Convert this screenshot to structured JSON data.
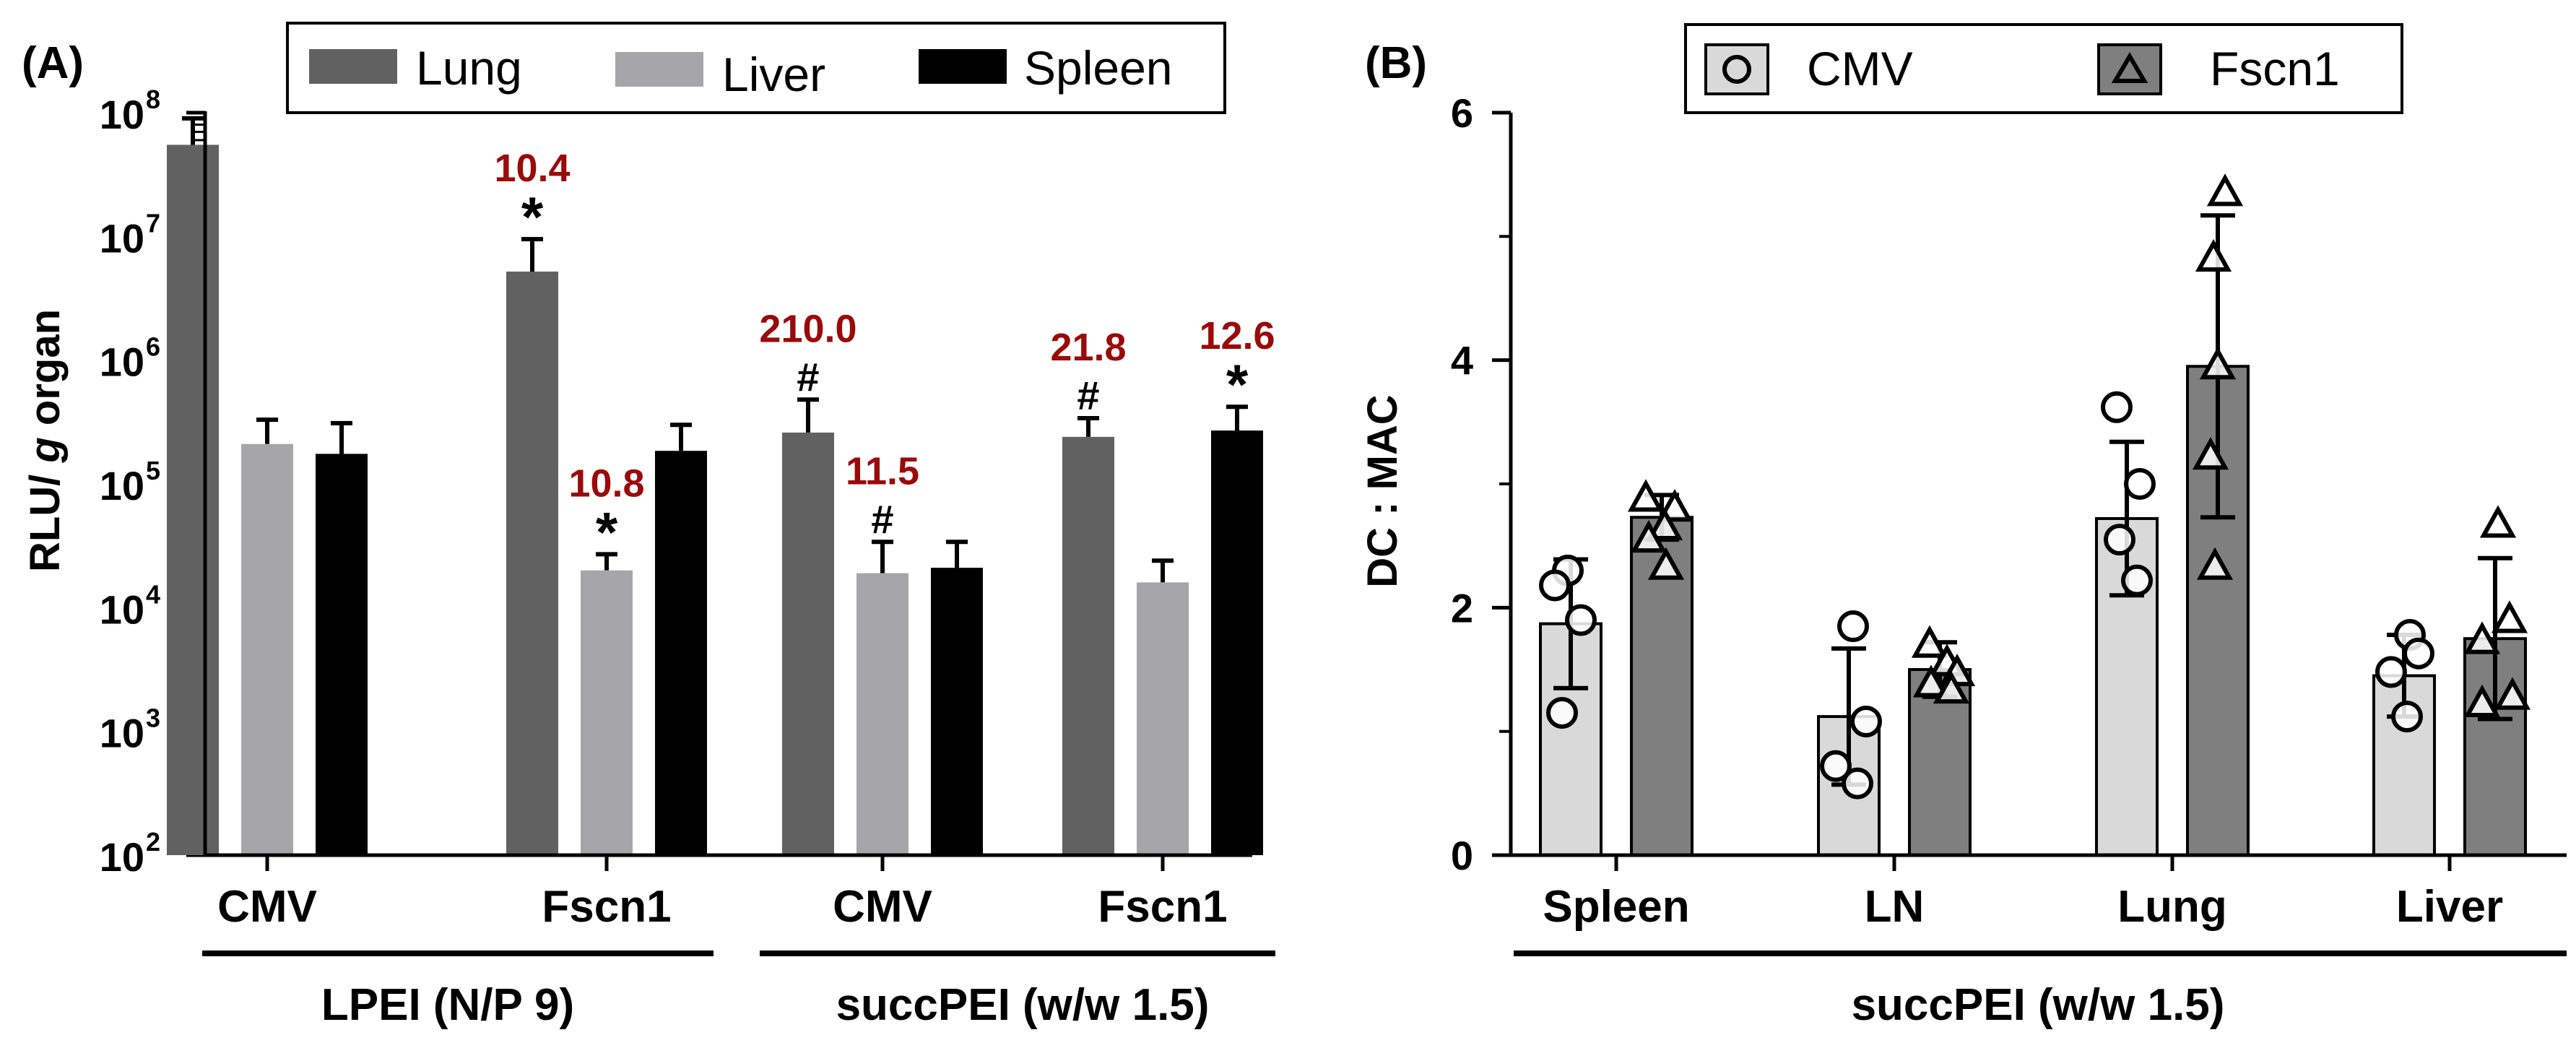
{
  "chart_data": [
    {
      "panel": "(A)",
      "type": "bar",
      "yscale": "log",
      "ylabel_prefix": "RLU/ ",
      "ylabel_italic": "g",
      "ylabel_suffix": " organ",
      "ylim": [
        100,
        100000000
      ],
      "yticks": [
        {
          "value": 100,
          "base": "10",
          "exp": "2"
        },
        {
          "value": 1000,
          "base": "10",
          "exp": "3"
        },
        {
          "value": 10000,
          "base": "10",
          "exp": "4"
        },
        {
          "value": 100000,
          "base": "10",
          "exp": "5"
        },
        {
          "value": 1000000,
          "base": "10",
          "exp": "6"
        },
        {
          "value": 10000000,
          "base": "10",
          "exp": "7"
        },
        {
          "value": 100000000,
          "base": "10",
          "exp": "8"
        }
      ],
      "categories": [
        "CMV",
        "Fscn1",
        "CMV",
        "Fscn1"
      ],
      "groups": [
        "LPEI (N/P 9)",
        "succPEI (w/w 1.5)"
      ],
      "legend": [
        "Lung",
        "Liver",
        "Spleen"
      ],
      "series": [
        {
          "name": "Lung",
          "color": "#616161",
          "values": [
            55000000,
            5200000,
            260000,
            240000
          ],
          "errors": [
            90000000,
            9500000,
            480000,
            340000
          ]
        },
        {
          "name": "Liver",
          "color": "#a6a6a8",
          "values": [
            210000,
            20000,
            19000,
            16000
          ],
          "errors": [
            330000,
            27000,
            34000,
            24000
          ]
        },
        {
          "name": "Spleen",
          "color": "#000000",
          "values": [
            175000,
            185000,
            21000,
            270000
          ],
          "errors": [
            310000,
            300000,
            34000,
            420000
          ]
        }
      ],
      "annotations": [
        {
          "category": 1,
          "series": 0,
          "symbol": "*",
          "value": "10.4"
        },
        {
          "category": 1,
          "series": 1,
          "symbol": "*",
          "value": "10.8"
        },
        {
          "category": 2,
          "series": 0,
          "symbol": "#",
          "value": "210.0"
        },
        {
          "category": 2,
          "series": 1,
          "symbol": "#",
          "value": "11.5"
        },
        {
          "category": 3,
          "series": 0,
          "symbol": "#",
          "value": "21.8"
        },
        {
          "category": 3,
          "series": 2,
          "symbol": "*",
          "value": "12.6"
        }
      ],
      "annotation_color": "#9b0a0a"
    },
    {
      "panel": "(B)",
      "type": "bar",
      "ylabel": "DC : MAC",
      "ylim": [
        0,
        6
      ],
      "yticks": [
        0,
        2,
        4,
        6
      ],
      "categories": [
        "Spleen",
        "LN",
        "Lung",
        "Liver"
      ],
      "group": "succPEI (w/w 1.5)",
      "legend": [
        "CMV",
        "Fscn1"
      ],
      "series": [
        {
          "name": "CMV",
          "marker": "circle",
          "color": "#d9d9d9",
          "values": [
            1.87,
            1.12,
            2.72,
            1.45
          ],
          "errors": [
            0.52,
            0.55,
            0.62,
            0.33
          ],
          "points": [
            [
              2.3,
              2.18,
              1.9,
              1.15
            ],
            [
              1.85,
              1.08,
              0.72,
              0.58
            ],
            [
              3.62,
              3.0,
              2.55,
              2.22
            ],
            [
              1.78,
              1.63,
              1.48,
              1.12
            ]
          ]
        },
        {
          "name": "Fscn1",
          "marker": "triangle",
          "color": "#7f7f7f",
          "values": [
            2.73,
            1.5,
            3.95,
            1.75
          ],
          "errors": [
            0.18,
            0.22,
            1.22,
            0.65
          ],
          "points": [
            [
              2.88,
              2.8,
              2.65,
              2.55,
              2.33
            ],
            [
              1.7,
              1.55,
              1.47,
              1.38,
              1.33
            ],
            [
              5.35,
              4.82,
              3.95,
              3.22,
              2.33
            ],
            [
              2.67,
              1.9,
              1.73,
              1.28,
              1.22
            ]
          ]
        }
      ]
    }
  ]
}
